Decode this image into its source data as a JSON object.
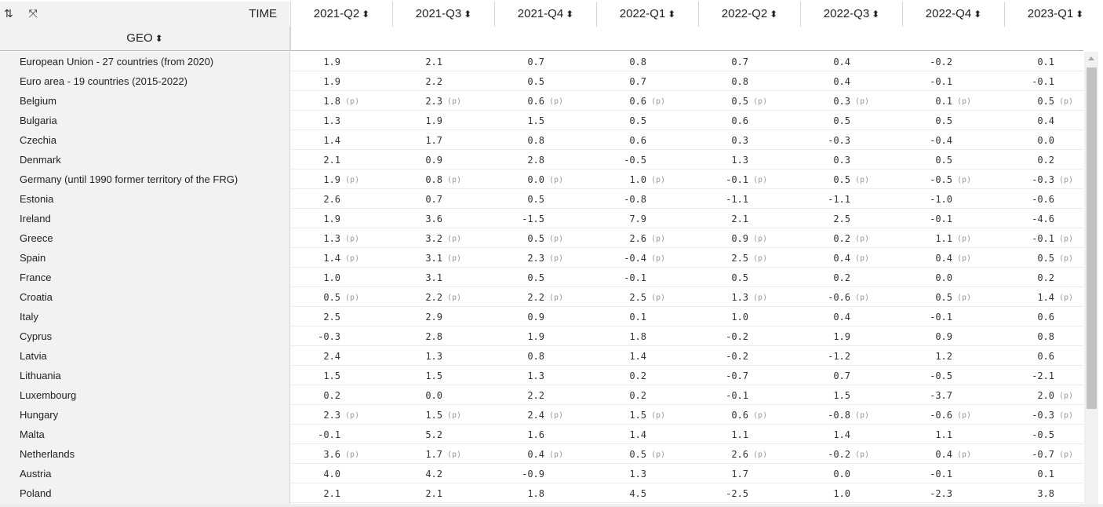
{
  "toolbar": {
    "sort_icon_glyph": "⇅",
    "expand_icon_glyph": "⤧",
    "time_label": "TIME",
    "geo_label": "GEO",
    "sort_glyph": "⬍"
  },
  "columns": [
    "2021-Q2",
    "2021-Q3",
    "2021-Q4",
    "2022-Q1",
    "2022-Q2",
    "2022-Q3",
    "2022-Q4",
    "2023-Q1"
  ],
  "rows": [
    {
      "geo": "European Union - 27 countries (from 2020)",
      "cells": [
        [
          "1.9",
          ""
        ],
        [
          "2.1",
          ""
        ],
        [
          "0.7",
          ""
        ],
        [
          "0.8",
          ""
        ],
        [
          "0.7",
          ""
        ],
        [
          "0.4",
          ""
        ],
        [
          "-0.2",
          ""
        ],
        [
          "0.1",
          ""
        ]
      ]
    },
    {
      "geo": "Euro area - 19 countries (2015-2022)",
      "cells": [
        [
          "1.9",
          ""
        ],
        [
          "2.2",
          ""
        ],
        [
          "0.5",
          ""
        ],
        [
          "0.7",
          ""
        ],
        [
          "0.8",
          ""
        ],
        [
          "0.4",
          ""
        ],
        [
          "-0.1",
          ""
        ],
        [
          "-0.1",
          ""
        ]
      ]
    },
    {
      "geo": "Belgium",
      "cells": [
        [
          "1.8",
          "(p)"
        ],
        [
          "2.3",
          "(p)"
        ],
        [
          "0.6",
          "(p)"
        ],
        [
          "0.6",
          "(p)"
        ],
        [
          "0.5",
          "(p)"
        ],
        [
          "0.3",
          "(p)"
        ],
        [
          "0.1",
          "(p)"
        ],
        [
          "0.5",
          "(p)"
        ]
      ]
    },
    {
      "geo": "Bulgaria",
      "cells": [
        [
          "1.3",
          ""
        ],
        [
          "1.9",
          ""
        ],
        [
          "1.5",
          ""
        ],
        [
          "0.5",
          ""
        ],
        [
          "0.6",
          ""
        ],
        [
          "0.5",
          ""
        ],
        [
          "0.5",
          ""
        ],
        [
          "0.4",
          ""
        ]
      ]
    },
    {
      "geo": "Czechia",
      "cells": [
        [
          "1.4",
          ""
        ],
        [
          "1.7",
          ""
        ],
        [
          "0.8",
          ""
        ],
        [
          "0.6",
          ""
        ],
        [
          "0.3",
          ""
        ],
        [
          "-0.3",
          ""
        ],
        [
          "-0.4",
          ""
        ],
        [
          "0.0",
          ""
        ]
      ]
    },
    {
      "geo": "Denmark",
      "cells": [
        [
          "2.1",
          ""
        ],
        [
          "0.9",
          ""
        ],
        [
          "2.8",
          ""
        ],
        [
          "-0.5",
          ""
        ],
        [
          "1.3",
          ""
        ],
        [
          "0.3",
          ""
        ],
        [
          "0.5",
          ""
        ],
        [
          "0.2",
          ""
        ]
      ]
    },
    {
      "geo": "Germany (until 1990 former territory of the FRG)",
      "cells": [
        [
          "1.9",
          "(p)"
        ],
        [
          "0.8",
          "(p)"
        ],
        [
          "0.0",
          "(p)"
        ],
        [
          "1.0",
          "(p)"
        ],
        [
          "-0.1",
          "(p)"
        ],
        [
          "0.5",
          "(p)"
        ],
        [
          "-0.5",
          "(p)"
        ],
        [
          "-0.3",
          "(p)"
        ]
      ]
    },
    {
      "geo": "Estonia",
      "cells": [
        [
          "2.6",
          ""
        ],
        [
          "0.7",
          ""
        ],
        [
          "0.5",
          ""
        ],
        [
          "-0.8",
          ""
        ],
        [
          "-1.1",
          ""
        ],
        [
          "-1.1",
          ""
        ],
        [
          "-1.0",
          ""
        ],
        [
          "-0.6",
          ""
        ]
      ]
    },
    {
      "geo": "Ireland",
      "cells": [
        [
          "1.9",
          ""
        ],
        [
          "3.6",
          ""
        ],
        [
          "-1.5",
          ""
        ],
        [
          "7.9",
          ""
        ],
        [
          "2.1",
          ""
        ],
        [
          "2.5",
          ""
        ],
        [
          "-0.1",
          ""
        ],
        [
          "-4.6",
          ""
        ]
      ]
    },
    {
      "geo": "Greece",
      "cells": [
        [
          "1.3",
          "(p)"
        ],
        [
          "3.2",
          "(p)"
        ],
        [
          "0.5",
          "(p)"
        ],
        [
          "2.6",
          "(p)"
        ],
        [
          "0.9",
          "(p)"
        ],
        [
          "0.2",
          "(p)"
        ],
        [
          "1.1",
          "(p)"
        ],
        [
          "-0.1",
          "(p)"
        ]
      ]
    },
    {
      "geo": "Spain",
      "cells": [
        [
          "1.4",
          "(p)"
        ],
        [
          "3.1",
          "(p)"
        ],
        [
          "2.3",
          "(p)"
        ],
        [
          "-0.4",
          "(p)"
        ],
        [
          "2.5",
          "(p)"
        ],
        [
          "0.4",
          "(p)"
        ],
        [
          "0.4",
          "(p)"
        ],
        [
          "0.5",
          "(p)"
        ]
      ]
    },
    {
      "geo": "France",
      "cells": [
        [
          "1.0",
          ""
        ],
        [
          "3.1",
          ""
        ],
        [
          "0.5",
          ""
        ],
        [
          "-0.1",
          ""
        ],
        [
          "0.5",
          ""
        ],
        [
          "0.2",
          ""
        ],
        [
          "0.0",
          ""
        ],
        [
          "0.2",
          ""
        ]
      ]
    },
    {
      "geo": "Croatia",
      "cells": [
        [
          "0.5",
          "(p)"
        ],
        [
          "2.2",
          "(p)"
        ],
        [
          "2.2",
          "(p)"
        ],
        [
          "2.5",
          "(p)"
        ],
        [
          "1.3",
          "(p)"
        ],
        [
          "-0.6",
          "(p)"
        ],
        [
          "0.5",
          "(p)"
        ],
        [
          "1.4",
          "(p)"
        ]
      ]
    },
    {
      "geo": "Italy",
      "cells": [
        [
          "2.5",
          ""
        ],
        [
          "2.9",
          ""
        ],
        [
          "0.9",
          ""
        ],
        [
          "0.1",
          ""
        ],
        [
          "1.0",
          ""
        ],
        [
          "0.4",
          ""
        ],
        [
          "-0.1",
          ""
        ],
        [
          "0.6",
          ""
        ]
      ]
    },
    {
      "geo": "Cyprus",
      "cells": [
        [
          "-0.3",
          ""
        ],
        [
          "2.8",
          ""
        ],
        [
          "1.9",
          ""
        ],
        [
          "1.8",
          ""
        ],
        [
          "-0.2",
          ""
        ],
        [
          "1.9",
          ""
        ],
        [
          "0.9",
          ""
        ],
        [
          "0.8",
          ""
        ]
      ]
    },
    {
      "geo": "Latvia",
      "cells": [
        [
          "2.4",
          ""
        ],
        [
          "1.3",
          ""
        ],
        [
          "0.8",
          ""
        ],
        [
          "1.4",
          ""
        ],
        [
          "-0.2",
          ""
        ],
        [
          "-1.2",
          ""
        ],
        [
          "1.2",
          ""
        ],
        [
          "0.6",
          ""
        ]
      ]
    },
    {
      "geo": "Lithuania",
      "cells": [
        [
          "1.5",
          ""
        ],
        [
          "1.5",
          ""
        ],
        [
          "1.3",
          ""
        ],
        [
          "0.2",
          ""
        ],
        [
          "-0.7",
          ""
        ],
        [
          "0.7",
          ""
        ],
        [
          "-0.5",
          ""
        ],
        [
          "-2.1",
          ""
        ]
      ]
    },
    {
      "geo": "Luxembourg",
      "cells": [
        [
          "0.2",
          ""
        ],
        [
          "0.0",
          ""
        ],
        [
          "2.2",
          ""
        ],
        [
          "0.2",
          ""
        ],
        [
          "-0.1",
          ""
        ],
        [
          "1.5",
          ""
        ],
        [
          "-3.7",
          ""
        ],
        [
          "2.0",
          "(p)"
        ]
      ]
    },
    {
      "geo": "Hungary",
      "cells": [
        [
          "2.3",
          "(p)"
        ],
        [
          "1.5",
          "(p)"
        ],
        [
          "2.4",
          "(p)"
        ],
        [
          "1.5",
          "(p)"
        ],
        [
          "0.6",
          "(p)"
        ],
        [
          "-0.8",
          "(p)"
        ],
        [
          "-0.6",
          "(p)"
        ],
        [
          "-0.3",
          "(p)"
        ]
      ]
    },
    {
      "geo": "Malta",
      "cells": [
        [
          "-0.1",
          ""
        ],
        [
          "5.2",
          ""
        ],
        [
          "1.6",
          ""
        ],
        [
          "1.4",
          ""
        ],
        [
          "1.1",
          ""
        ],
        [
          "1.4",
          ""
        ],
        [
          "1.1",
          ""
        ],
        [
          "-0.5",
          ""
        ]
      ]
    },
    {
      "geo": "Netherlands",
      "cells": [
        [
          "3.6",
          "(p)"
        ],
        [
          "1.7",
          "(p)"
        ],
        [
          "0.4",
          "(p)"
        ],
        [
          "0.5",
          "(p)"
        ],
        [
          "2.6",
          "(p)"
        ],
        [
          "-0.2",
          "(p)"
        ],
        [
          "0.4",
          "(p)"
        ],
        [
          "-0.7",
          "(p)"
        ]
      ]
    },
    {
      "geo": "Austria",
      "cells": [
        [
          "4.0",
          ""
        ],
        [
          "4.2",
          ""
        ],
        [
          "-0.9",
          ""
        ],
        [
          "1.3",
          ""
        ],
        [
          "1.7",
          ""
        ],
        [
          "0.0",
          ""
        ],
        [
          "-0.1",
          ""
        ],
        [
          "0.1",
          ""
        ]
      ]
    },
    {
      "geo": "Poland",
      "cells": [
        [
          "2.1",
          ""
        ],
        [
          "2.1",
          ""
        ],
        [
          "1.8",
          ""
        ],
        [
          "4.5",
          ""
        ],
        [
          "-2.5",
          ""
        ],
        [
          "1.0",
          ""
        ],
        [
          "-2.3",
          ""
        ],
        [
          "3.8",
          ""
        ]
      ]
    }
  ]
}
